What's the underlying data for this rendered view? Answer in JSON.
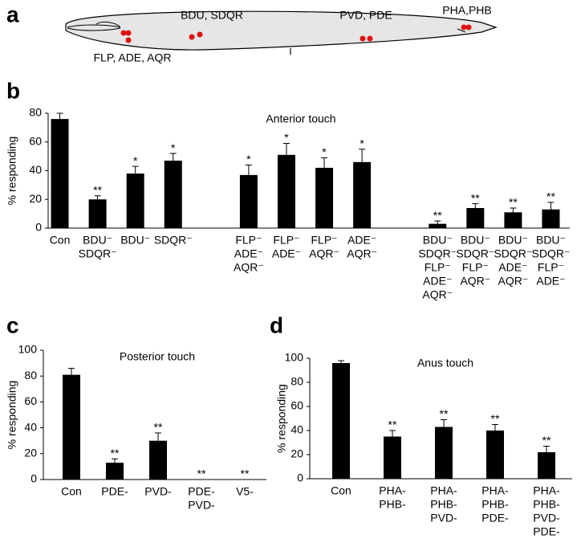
{
  "panel_labels": [
    "a",
    "b",
    "c",
    "d"
  ],
  "diagram": {
    "labels": [
      "BDU, SDQR",
      "PVD, PDE",
      "PHA,PHB",
      "FLP, ADE, AQR"
    ]
  },
  "chart_data": [
    {
      "type": "bar",
      "title": "Anterior touch",
      "y_label": "% responding",
      "color": "#000000",
      "categories": [
        [
          "Con"
        ],
        [
          "BDU⁻",
          "SDQR⁻"
        ],
        [
          "BDU⁻"
        ],
        [
          "SDQR⁻"
        ],
        null,
        [
          "FLP⁻",
          "ADE⁻",
          "AQR⁻"
        ],
        [
          "FLP⁻",
          "ADE⁻"
        ],
        [
          "FLP⁻",
          "AQR⁻"
        ],
        [
          "ADE⁻",
          "AQR⁻"
        ],
        null,
        [
          "BDU⁻",
          "SDQR⁻",
          "FLP⁻",
          "ADE⁻",
          "AQR⁻"
        ],
        [
          "BDU⁻",
          "SDQR⁻",
          "FLP⁻",
          "AQR⁻"
        ],
        [
          "BDU⁻",
          "SDQR⁻",
          "ADE⁻",
          "AQR⁻"
        ],
        [
          "BDU⁻",
          "SDQR⁻",
          "FLP⁻",
          "ADE⁻"
        ]
      ],
      "values": [
        76,
        20,
        38,
        47,
        null,
        37,
        51,
        42,
        46,
        null,
        3,
        14,
        11,
        13
      ],
      "errors": [
        4,
        2.5,
        5,
        5,
        null,
        7,
        8,
        7,
        9,
        null,
        2,
        3,
        3,
        5
      ],
      "significance": [
        null,
        "**",
        "*",
        "*",
        null,
        "*",
        "*",
        "*",
        "*",
        null,
        "**",
        "**",
        "**",
        "**"
      ],
      "ylim": [
        0,
        80
      ],
      "yticks": [
        0,
        20,
        40,
        60,
        80
      ]
    },
    {
      "type": "bar",
      "title": "Posterior touch",
      "y_label": "% responding",
      "color": "#000000",
      "categories": [
        [
          "Con"
        ],
        [
          "PDE-"
        ],
        [
          "PVD-"
        ],
        [
          "PDE-",
          "PVD-"
        ],
        [
          "V5-"
        ]
      ],
      "values": [
        81,
        13,
        30,
        0,
        0
      ],
      "errors": [
        5,
        3,
        6,
        0,
        0
      ],
      "significance": [
        null,
        "**",
        "**",
        "**",
        "**"
      ],
      "ylim": [
        0,
        100
      ],
      "yticks": [
        0,
        20,
        40,
        60,
        80,
        100
      ]
    },
    {
      "type": "bar",
      "title": "Anus touch",
      "y_label": "% responding",
      "color": "#000000",
      "categories": [
        [
          "Con"
        ],
        [
          "PHA-",
          "PHB-"
        ],
        [
          "PHA-",
          "PHB-",
          "PVD-"
        ],
        [
          "PHA-",
          "PHB-",
          "PDE-"
        ],
        [
          "PHA-",
          "PHB-",
          "PVD-",
          "PDE-"
        ]
      ],
      "values": [
        96,
        35,
        43,
        40,
        22
      ],
      "errors": [
        2,
        5,
        6,
        5,
        5
      ],
      "significance": [
        null,
        "**",
        "**",
        "**",
        "**"
      ],
      "ylim": [
        0,
        100
      ],
      "yticks": [
        0,
        20,
        40,
        60,
        80,
        100
      ]
    }
  ]
}
